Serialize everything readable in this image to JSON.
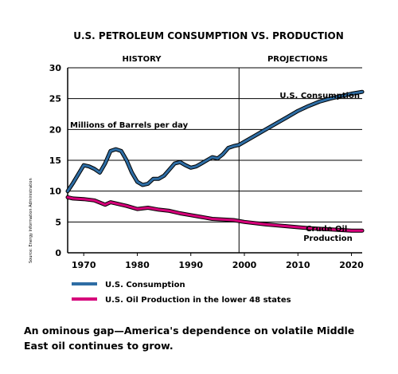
{
  "chart_data": {
    "type": "line",
    "title": "U.S. PETROLEUM CONSUMPTION VS. PRODUCTION",
    "sections": {
      "history": "HISTORY",
      "projections": "PROJECTIONS"
    },
    "ylabel": "Millions of Barrels per day",
    "xlim": [
      1967,
      2022
    ],
    "ylim": [
      0,
      30
    ],
    "x_ticks": [
      1970,
      1980,
      1990,
      2000,
      2010,
      2020
    ],
    "y_ticks": [
      0,
      5,
      10,
      15,
      20,
      25,
      30
    ],
    "grid": "horizontal",
    "divider_year": 1999,
    "legend_position": "bottom",
    "source_note": "Source: Energy Information Administration",
    "series": [
      {
        "name": "U.S. Consumption",
        "label": "U.S. Consumption",
        "color": "#2e6da4",
        "x": [
          1967,
          1968,
          1970,
          1971,
          1972,
          1973,
          1974,
          1975,
          1976,
          1977,
          1978,
          1979,
          1980,
          1981,
          1982,
          1983,
          1984,
          1985,
          1986,
          1987,
          1988,
          1989,
          1990,
          1991,
          1992,
          1993,
          1994,
          1995,
          1996,
          1997,
          1998,
          1999,
          2000,
          2002,
          2004,
          2006,
          2008,
          2010,
          2012,
          2014,
          2016,
          2018,
          2020,
          2022
        ],
        "y": [
          10.0,
          11.3,
          14.2,
          14.0,
          13.6,
          13.0,
          14.5,
          16.5,
          16.8,
          16.5,
          15.0,
          13.0,
          11.5,
          11.0,
          11.2,
          12.0,
          12.0,
          12.5,
          13.5,
          14.5,
          14.7,
          14.2,
          13.8,
          14.0,
          14.5,
          15.0,
          15.5,
          15.3,
          16.0,
          17.0,
          17.3,
          17.5,
          18.0,
          19.0,
          20.0,
          21.0,
          22.0,
          23.0,
          23.8,
          24.5,
          25.0,
          25.4,
          25.8,
          26.1
        ]
      },
      {
        "name": "U.S. Oil Production in the lower 48 states",
        "label": "Crude Oil Production",
        "color": "#d6007a",
        "x": [
          1967,
          1968,
          1970,
          1972,
          1974,
          1975,
          1976,
          1978,
          1980,
          1982,
          1984,
          1986,
          1988,
          1990,
          1992,
          1994,
          1996,
          1998,
          2000,
          2004,
          2008,
          2012,
          2016,
          2020,
          2022
        ],
        "y": [
          9.0,
          8.8,
          8.7,
          8.5,
          7.8,
          8.2,
          8.0,
          7.6,
          7.1,
          7.3,
          7.0,
          6.8,
          6.4,
          6.1,
          5.8,
          5.5,
          5.4,
          5.3,
          5.0,
          4.6,
          4.3,
          4.0,
          3.8,
          3.6,
          3.6
        ]
      }
    ]
  },
  "caption": "An ominous gap—America's dependence on volatile Middle East oil continues to grow."
}
